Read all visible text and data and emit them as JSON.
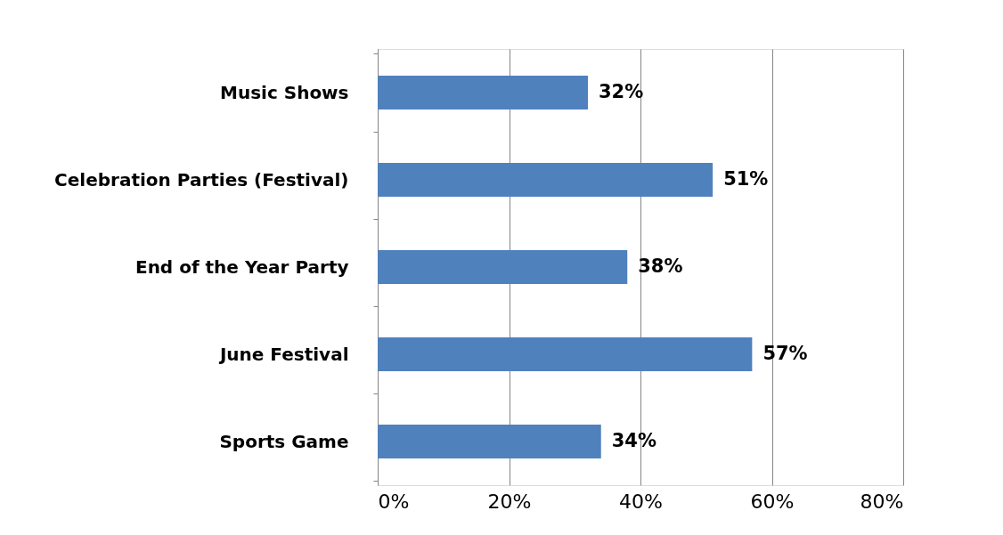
{
  "chart_data": {
    "type": "bar",
    "orientation": "horizontal",
    "categories": [
      "Music Shows",
      "Celebration Parties (Festival)",
      "End of the Year Party",
      "June Festival",
      "Sports Game"
    ],
    "values": [
      32,
      51,
      38,
      57,
      34
    ],
    "value_labels": [
      "32%",
      "51%",
      "38%",
      "57%",
      "34%"
    ],
    "color": "#4f81bd",
    "xlim": [
      0,
      80
    ],
    "xticks": [
      {
        "value": 0,
        "label": "0%"
      },
      {
        "value": 20,
        "label": "20%"
      },
      {
        "value": 40,
        "label": "40%"
      },
      {
        "value": 60,
        "label": "60%"
      },
      {
        "value": 80,
        "label": "80%"
      }
    ],
    "grid": "x"
  }
}
